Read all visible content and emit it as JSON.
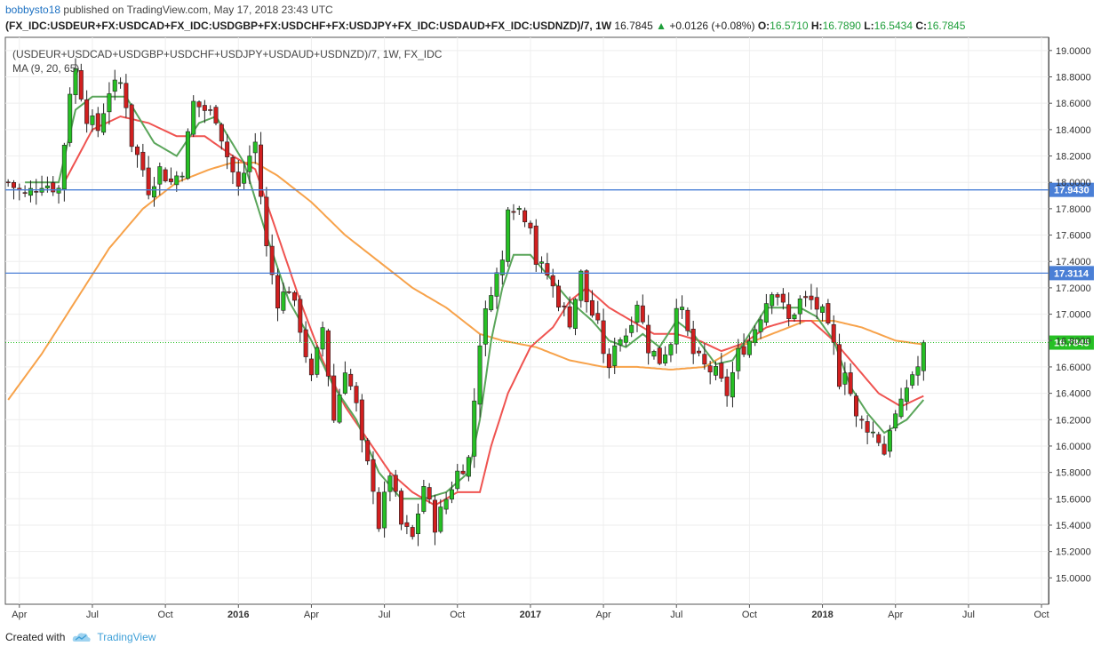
{
  "header": {
    "author": "bobbysto18",
    "published_text": "published on TradingView.com, May 17, 2018 23:43 UTC"
  },
  "ohlc_bar": {
    "symbol": "(FX_IDC:USDEUR+FX:USDCAD+FX_IDC:USDGBP+FX:USDCHF+FX:USDJPY+FX_IDC:USDAUD+FX_IDC:USDNZD)/7, 1W",
    "last": "16.7845",
    "change_arrow": "▲",
    "change": "+0.0126 (+0.08%)",
    "o_label": "O:",
    "o": "16.5710",
    "h_label": "H:",
    "h": "16.7890",
    "l_label": "L:",
    "l": "16.5434",
    "c_label": "C:",
    "c": "16.7845"
  },
  "legend": {
    "series_title": "(USDEUR+USDCAD+USDGBP+USDCHF+USDJPY+USDAUD+USDNZD)/7, 1W, FX_IDC",
    "ma_title": "MA (9, 20, 65)"
  },
  "footer": {
    "created_with": "Created with",
    "brand": "TradingView"
  },
  "colors": {
    "up": "#26c024",
    "down": "#d11f1f",
    "ma9": "#5aa55a",
    "ma20": "#ef5350",
    "ma65": "#f7a24a",
    "hline": "#4a7fd6",
    "last_price": "#26c024"
  },
  "chart_data": {
    "type": "candlestick",
    "interval": "1W",
    "y_axis": {
      "min": 14.8,
      "max": 19.1,
      "ticks": [
        "15.0000",
        "15.2000",
        "15.4000",
        "15.6000",
        "15.8000",
        "16.0000",
        "16.2000",
        "16.4000",
        "16.6000",
        "16.8000",
        "17.0000",
        "17.2000",
        "17.4000",
        "17.6000",
        "17.8000",
        "18.0000",
        "18.2000",
        "18.4000",
        "18.6000",
        "18.8000",
        "19.0000"
      ],
      "position": "right"
    },
    "x_axis": {
      "labels": [
        {
          "text": "Apr",
          "week": 2,
          "bold": false
        },
        {
          "text": "Jul",
          "week": 15,
          "bold": false
        },
        {
          "text": "Oct",
          "week": 28,
          "bold": false
        },
        {
          "text": "2016",
          "week": 41,
          "bold": true
        },
        {
          "text": "Apr",
          "week": 54,
          "bold": false
        },
        {
          "text": "Jul",
          "week": 67,
          "bold": false
        },
        {
          "text": "Oct",
          "week": 80,
          "bold": false
        },
        {
          "text": "2017",
          "week": 93,
          "bold": true
        },
        {
          "text": "Apr",
          "week": 106,
          "bold": false
        },
        {
          "text": "Jul",
          "week": 119,
          "bold": false
        },
        {
          "text": "Oct",
          "week": 132,
          "bold": false
        },
        {
          "text": "2018",
          "week": 145,
          "bold": true
        },
        {
          "text": "Apr",
          "week": 158,
          "bold": false
        },
        {
          "text": "Jul",
          "week": 171,
          "bold": false
        },
        {
          "text": "Oct",
          "week": 184,
          "bold": false
        }
      ],
      "total_weeks": 195
    },
    "horizontal_lines": [
      {
        "value": 17.943,
        "label": "17.9430"
      },
      {
        "value": 17.3114,
        "label": "17.3114"
      }
    ],
    "last_price": {
      "value": 16.7845,
      "label": "16.7845"
    },
    "anchors": {
      "close": [
        [
          0,
          18.0
        ],
        [
          3,
          17.9
        ],
        [
          6,
          18.0
        ],
        [
          9,
          17.95
        ],
        [
          10,
          18.3
        ],
        [
          11,
          18.7
        ],
        [
          12,
          18.85
        ],
        [
          14,
          18.5
        ],
        [
          16,
          18.4
        ],
        [
          18,
          18.7
        ],
        [
          20,
          18.75
        ],
        [
          21,
          18.6
        ],
        [
          22,
          18.3
        ],
        [
          24,
          18.1
        ],
        [
          25,
          17.95
        ],
        [
          27,
          18.1
        ],
        [
          29,
          18.0
        ],
        [
          31,
          18.1
        ],
        [
          33,
          18.6
        ],
        [
          35,
          18.55
        ],
        [
          37,
          18.5
        ],
        [
          39,
          18.2
        ],
        [
          41,
          17.95
        ],
        [
          43,
          18.2
        ],
        [
          44,
          18.3
        ],
        [
          46,
          17.5
        ],
        [
          48,
          17.1
        ],
        [
          50,
          17.2
        ],
        [
          52,
          16.9
        ],
        [
          54,
          16.5
        ],
        [
          56,
          16.9
        ],
        [
          58,
          16.2
        ],
        [
          60,
          16.6
        ],
        [
          62,
          16.3
        ],
        [
          63,
          16.0
        ],
        [
          65,
          15.7
        ],
        [
          66,
          15.4
        ],
        [
          68,
          15.8
        ],
        [
          70,
          15.4
        ],
        [
          72,
          15.3
        ],
        [
          74,
          15.7
        ],
        [
          76,
          15.4
        ],
        [
          78,
          15.6
        ],
        [
          80,
          15.8
        ],
        [
          82,
          15.9
        ],
        [
          84,
          16.8
        ],
        [
          86,
          17.2
        ],
        [
          88,
          17.4
        ],
        [
          89,
          17.85
        ],
        [
          91,
          17.8
        ],
        [
          93,
          17.7
        ],
        [
          94,
          17.4
        ],
        [
          96,
          17.3
        ],
        [
          98,
          17.1
        ],
        [
          100,
          16.95
        ],
        [
          102,
          17.3
        ],
        [
          103,
          17.1
        ],
        [
          105,
          16.9
        ],
        [
          107,
          16.55
        ],
        [
          108,
          16.8
        ],
        [
          110,
          16.85
        ],
        [
          112,
          17.1
        ],
        [
          114,
          16.75
        ],
        [
          116,
          16.65
        ],
        [
          118,
          16.8
        ],
        [
          119,
          17.1
        ],
        [
          120,
          17.0
        ],
        [
          122,
          16.7
        ],
        [
          124,
          16.6
        ],
        [
          126,
          16.55
        ],
        [
          128,
          16.4
        ],
        [
          130,
          16.7
        ],
        [
          132,
          16.8
        ],
        [
          134,
          17.0
        ],
        [
          136,
          17.2
        ],
        [
          137,
          17.15
        ],
        [
          139,
          16.95
        ],
        [
          141,
          17.1
        ],
        [
          143,
          17.1
        ],
        [
          145,
          17.0
        ],
        [
          147,
          16.75
        ],
        [
          148,
          16.5
        ],
        [
          149,
          16.6
        ],
        [
          151,
          16.2
        ],
        [
          153,
          16.15
        ],
        [
          155,
          16.05
        ],
        [
          156,
          15.95
        ],
        [
          157,
          16.15
        ],
        [
          159,
          16.3
        ],
        [
          160,
          16.45
        ],
        [
          161,
          16.55
        ],
        [
          162,
          16.6
        ],
        [
          163,
          16.78
        ]
      ],
      "ma9": [
        [
          3,
          18.0
        ],
        [
          9,
          18.0
        ],
        [
          12,
          18.55
        ],
        [
          15,
          18.65
        ],
        [
          21,
          18.65
        ],
        [
          26,
          18.3
        ],
        [
          30,
          18.2
        ],
        [
          34,
          18.45
        ],
        [
          37,
          18.5
        ],
        [
          42,
          18.15
        ],
        [
          46,
          17.6
        ],
        [
          50,
          17.1
        ],
        [
          54,
          16.8
        ],
        [
          58,
          16.45
        ],
        [
          62,
          16.2
        ],
        [
          66,
          15.8
        ],
        [
          70,
          15.6
        ],
        [
          74,
          15.6
        ],
        [
          78,
          15.65
        ],
        [
          82,
          15.8
        ],
        [
          84,
          16.2
        ],
        [
          86,
          16.8
        ],
        [
          88,
          17.2
        ],
        [
          90,
          17.45
        ],
        [
          93,
          17.45
        ],
        [
          96,
          17.3
        ],
        [
          100,
          17.1
        ],
        [
          104,
          16.95
        ],
        [
          107,
          16.8
        ],
        [
          110,
          16.75
        ],
        [
          113,
          16.85
        ],
        [
          116,
          16.75
        ],
        [
          119,
          16.95
        ],
        [
          122,
          16.85
        ],
        [
          126,
          16.62
        ],
        [
          129,
          16.65
        ],
        [
          132,
          16.85
        ],
        [
          135,
          17.05
        ],
        [
          138,
          17.05
        ],
        [
          141,
          17.05
        ],
        [
          144,
          16.98
        ],
        [
          147,
          16.8
        ],
        [
          150,
          16.45
        ],
        [
          153,
          16.25
        ],
        [
          156,
          16.1
        ],
        [
          160,
          16.2
        ],
        [
          163,
          16.35
        ]
      ],
      "ma20": [
        [
          10,
          18.0
        ],
        [
          15,
          18.4
        ],
        [
          20,
          18.5
        ],
        [
          25,
          18.45
        ],
        [
          30,
          18.35
        ],
        [
          35,
          18.35
        ],
        [
          40,
          18.2
        ],
        [
          44,
          18.1
        ],
        [
          48,
          17.6
        ],
        [
          52,
          17.1
        ],
        [
          56,
          16.65
        ],
        [
          60,
          16.3
        ],
        [
          64,
          16.05
        ],
        [
          68,
          15.8
        ],
        [
          72,
          15.65
        ],
        [
          76,
          15.55
        ],
        [
          80,
          15.65
        ],
        [
          84,
          15.65
        ],
        [
          86,
          16.0
        ],
        [
          89,
          16.4
        ],
        [
          93,
          16.75
        ],
        [
          97,
          16.9
        ],
        [
          100,
          17.1
        ],
        [
          103,
          17.2
        ],
        [
          107,
          17.05
        ],
        [
          111,
          16.95
        ],
        [
          115,
          16.85
        ],
        [
          119,
          16.85
        ],
        [
          123,
          16.8
        ],
        [
          127,
          16.72
        ],
        [
          131,
          16.78
        ],
        [
          135,
          16.9
        ],
        [
          139,
          16.95
        ],
        [
          143,
          16.95
        ],
        [
          147,
          16.8
        ],
        [
          151,
          16.6
        ],
        [
          155,
          16.4
        ],
        [
          159,
          16.3
        ],
        [
          163,
          16.38
        ]
      ],
      "ma65": [
        [
          0,
          16.35
        ],
        [
          6,
          16.7
        ],
        [
          12,
          17.1
        ],
        [
          18,
          17.5
        ],
        [
          24,
          17.8
        ],
        [
          30,
          18.0
        ],
        [
          36,
          18.1
        ],
        [
          40,
          18.15
        ],
        [
          44,
          18.15
        ],
        [
          48,
          18.05
        ],
        [
          54,
          17.85
        ],
        [
          60,
          17.6
        ],
        [
          66,
          17.4
        ],
        [
          72,
          17.2
        ],
        [
          78,
          17.05
        ],
        [
          84,
          16.85
        ],
        [
          88,
          16.8
        ],
        [
          94,
          16.75
        ],
        [
          100,
          16.65
        ],
        [
          106,
          16.6
        ],
        [
          112,
          16.6
        ],
        [
          118,
          16.58
        ],
        [
          124,
          16.6
        ],
        [
          130,
          16.75
        ],
        [
          136,
          16.85
        ],
        [
          142,
          16.95
        ],
        [
          147,
          16.95
        ],
        [
          152,
          16.9
        ],
        [
          158,
          16.8
        ],
        [
          163,
          16.77
        ]
      ]
    }
  }
}
